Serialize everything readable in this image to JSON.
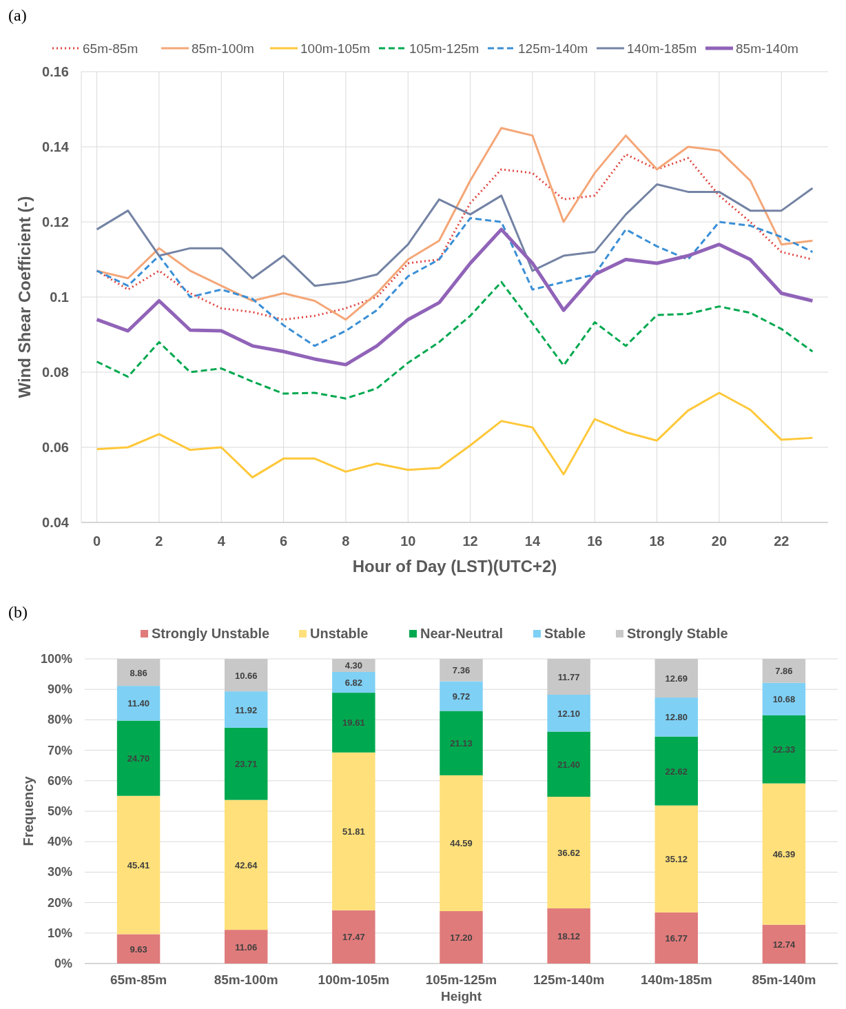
{
  "chart_data": [
    {
      "type": "line",
      "title": "(a)",
      "xlabel": "Hour of Day (LST)(UTC+2)",
      "ylabel": "Wind Shear Coefficient (-)",
      "x": [
        0,
        1,
        2,
        3,
        4,
        5,
        6,
        7,
        8,
        9,
        10,
        11,
        12,
        13,
        14,
        15,
        16,
        17,
        18,
        19,
        20,
        21,
        22,
        23
      ],
      "xlim": [
        -0.5,
        23.5
      ],
      "xticks": [
        0,
        2,
        4,
        6,
        8,
        10,
        12,
        14,
        16,
        18,
        20,
        22
      ],
      "ylim": [
        0.04,
        0.16
      ],
      "yticks": [
        {
          "value": 0.04,
          "label": "0.04"
        },
        {
          "value": 0.06,
          "label": "0.06"
        },
        {
          "value": 0.08,
          "label": "0.08"
        },
        {
          "value": 0.1,
          "label": "0.1"
        },
        {
          "value": 0.12,
          "label": "0.12"
        },
        {
          "value": 0.14,
          "label": "0.14"
        },
        {
          "value": 0.16,
          "label": "0.16"
        }
      ],
      "grid": true,
      "legend": "top",
      "marker": "none",
      "series": [
        {
          "name": "65m-85m",
          "color": "#e0453f",
          "line_style": "dotted",
          "values": [
            0.107,
            0.102,
            0.107,
            0.101,
            0.097,
            0.096,
            0.094,
            0.095,
            0.097,
            0.1,
            0.109,
            0.11,
            0.125,
            0.134,
            0.133,
            0.126,
            0.127,
            0.138,
            0.134,
            0.137,
            0.127,
            0.12,
            0.112,
            0.11
          ]
        },
        {
          "name": "85m-100m",
          "color": "#f4a677",
          "line_style": "solid",
          "values": [
            0.107,
            0.105,
            0.113,
            0.107,
            0.103,
            0.099,
            0.101,
            0.099,
            0.094,
            0.101,
            0.11,
            0.115,
            0.131,
            0.145,
            0.143,
            0.12,
            0.133,
            0.143,
            0.134,
            0.14,
            0.139,
            0.131,
            0.114,
            0.115
          ]
        },
        {
          "name": "100m-105m",
          "color": "#ffc83a",
          "line_style": "solid",
          "values": [
            0.0595,
            0.06,
            0.0635,
            0.0593,
            0.06,
            0.052,
            0.057,
            0.057,
            0.0535,
            0.0557,
            0.054,
            0.0545,
            0.0605,
            0.067,
            0.0653,
            0.0528,
            0.0675,
            0.064,
            0.0618,
            0.0698,
            0.0745,
            0.07,
            0.062,
            0.0625
          ]
        },
        {
          "name": "105m-125m",
          "color": "#00a84f",
          "line_style": "dashed",
          "values": [
            0.0828,
            0.0788,
            0.088,
            0.08,
            0.081,
            0.0775,
            0.0743,
            0.0745,
            0.073,
            0.0757,
            0.0825,
            0.088,
            0.095,
            0.104,
            0.093,
            0.0818,
            0.0933,
            0.087,
            0.0952,
            0.0955,
            0.0975,
            0.0958,
            0.0915,
            0.0855
          ]
        },
        {
          "name": "125m-140m",
          "color": "#3a8fd6",
          "line_style": "dashed",
          "values": [
            0.107,
            0.103,
            0.111,
            0.1,
            0.102,
            0.0995,
            0.0925,
            0.087,
            0.091,
            0.0965,
            0.1055,
            0.11,
            0.121,
            0.12,
            0.102,
            0.104,
            0.106,
            0.118,
            0.1135,
            0.11,
            0.12,
            0.119,
            0.116,
            0.112
          ]
        },
        {
          "name": "140m-185m",
          "color": "#7483a4",
          "line_style": "solid",
          "values": [
            0.118,
            0.123,
            0.111,
            0.113,
            0.113,
            0.105,
            0.111,
            0.103,
            0.104,
            0.106,
            0.114,
            0.126,
            0.122,
            0.127,
            0.107,
            0.111,
            0.112,
            0.122,
            0.13,
            0.128,
            0.128,
            0.123,
            0.123,
            0.129
          ]
        },
        {
          "name": "85m-140m",
          "color": "#9063b8",
          "line_style": "solid",
          "values": [
            0.094,
            0.091,
            0.099,
            0.0912,
            0.091,
            0.087,
            0.0855,
            0.0835,
            0.082,
            0.087,
            0.094,
            0.0985,
            0.109,
            0.118,
            0.109,
            0.0965,
            0.106,
            0.11,
            0.109,
            0.111,
            0.114,
            0.11,
            0.101,
            0.099
          ]
        }
      ]
    },
    {
      "type": "bar",
      "title": "(b)",
      "xlabel": "Height",
      "ylabel": "Frequency",
      "stacked": true,
      "grid": "y",
      "legend": "top",
      "categories": [
        "65m-85m",
        "85m-100m",
        "100m-105m",
        "105m-125m",
        "125m-140m",
        "140m-185m",
        "85m-140m"
      ],
      "ylim": [
        0,
        100
      ],
      "yticks": [
        {
          "value": 0,
          "label": "0%"
        },
        {
          "value": 10,
          "label": "10%"
        },
        {
          "value": 20,
          "label": "20%"
        },
        {
          "value": 30,
          "label": "30%"
        },
        {
          "value": 40,
          "label": "40%"
        },
        {
          "value": 50,
          "label": "50%"
        },
        {
          "value": 60,
          "label": "60%"
        },
        {
          "value": 70,
          "label": "70%"
        },
        {
          "value": 80,
          "label": "80%"
        },
        {
          "value": 90,
          "label": "90%"
        },
        {
          "value": 100,
          "label": "100%"
        }
      ],
      "series": [
        {
          "name": "Strongly Unstable",
          "color": "#e07b7b",
          "values": [
            9.63,
            11.06,
            17.47,
            17.2,
            18.12,
            16.77,
            12.74
          ],
          "value_labels": [
            "9.63",
            "11.06",
            "17.47",
            "17.20",
            "18.12",
            "16.77",
            "12.74"
          ]
        },
        {
          "name": "Unstable",
          "color": "#ffe07a",
          "values": [
            45.41,
            42.64,
            51.81,
            44.59,
            36.62,
            35.12,
            46.39
          ],
          "value_labels": [
            "45.41",
            "42.64",
            "51.81",
            "44.59",
            "36.62",
            "35.12",
            "46.39"
          ]
        },
        {
          "name": "Near-Neutral",
          "color": "#00a84f",
          "values": [
            24.7,
            23.71,
            19.61,
            21.13,
            21.4,
            22.62,
            22.33
          ],
          "value_labels": [
            "24.70",
            "23.71",
            "19.61",
            "21.13",
            "21.40",
            "22.62",
            "22.33"
          ]
        },
        {
          "name": "Stable",
          "color": "#7ed0f5",
          "values": [
            11.4,
            11.92,
            6.82,
            9.72,
            12.1,
            12.8,
            10.68
          ],
          "value_labels": [
            "11.40",
            "11.92",
            "6.82",
            "9.72",
            "12.10",
            "12.80",
            "10.68"
          ]
        },
        {
          "name": "Strongly Stable",
          "color": "#c8c8c8",
          "values": [
            8.86,
            10.66,
            4.3,
            7.36,
            11.77,
            12.69,
            7.86
          ],
          "value_labels": [
            "8.86",
            "10.66",
            "4.30",
            "7.36",
            "11.77",
            "12.69",
            "7.86"
          ]
        }
      ]
    }
  ]
}
